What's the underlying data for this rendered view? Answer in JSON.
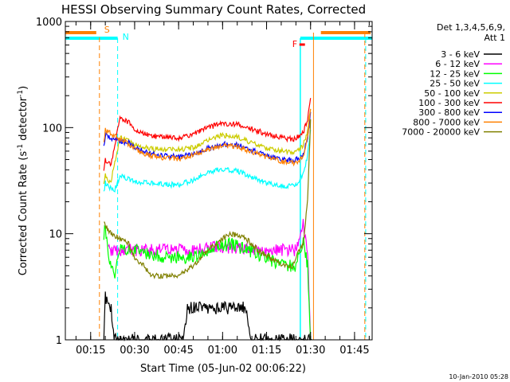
{
  "chart_data": {
    "type": "line",
    "title": "HESSI Observing Summary Count Rates, Corrected",
    "xlabel": "Start Time (05-Jun-02 00:06:22)",
    "ylabel_main": "Corrected Count Rate (s",
    "ylabel_sup1": "-1",
    "ylabel_mid": " detector",
    "ylabel_sup2": "-1",
    "ylabel_end": ")",
    "yscale": "log",
    "xlim_minutes": [
      6.37,
      111.0
    ],
    "ylim": [
      1,
      1000
    ],
    "x_ticks": [
      {
        "label": "00:15",
        "min": 15
      },
      {
        "label": "00:30",
        "min": 30
      },
      {
        "label": "00:45",
        "min": 45
      },
      {
        "label": "01:00",
        "min": 60
      },
      {
        "label": "01:15",
        "min": 75
      },
      {
        "label": "01:30",
        "min": 90
      },
      {
        "label": "01:45",
        "min": 105
      }
    ],
    "y_ticks": [
      {
        "label": "1",
        "v": 1
      },
      {
        "label": "10",
        "v": 10
      },
      {
        "label": "100",
        "v": 100
      },
      {
        "label": "1000",
        "v": 1000
      }
    ],
    "legend_header": [
      "Det 1,3,4,5,6,9,",
      "Att 1"
    ],
    "footer_date": "10-Jan-2010 05:28",
    "series": [
      {
        "name": "3 - 6 keV",
        "color": "#000000",
        "points": [
          [
            19.5,
            1
          ],
          [
            20,
            2.5
          ],
          [
            21,
            2
          ],
          [
            22,
            2
          ],
          [
            23,
            1
          ],
          [
            46.5,
            1
          ],
          [
            48,
            2
          ],
          [
            55,
            2
          ],
          [
            63,
            2
          ],
          [
            68,
            2
          ],
          [
            70,
            1
          ],
          [
            89,
            1
          ],
          [
            90.5,
            1
          ]
        ]
      },
      {
        "name": "6 - 12 keV",
        "color": "#ff00ff",
        "points": [
          [
            21,
            7
          ],
          [
            25,
            7
          ],
          [
            30,
            7
          ],
          [
            40,
            7
          ],
          [
            50,
            7
          ],
          [
            60,
            7.5
          ],
          [
            70,
            7
          ],
          [
            80,
            7
          ],
          [
            85,
            7
          ],
          [
            87.5,
            12
          ],
          [
            89,
            7
          ],
          [
            90,
            1
          ]
        ]
      },
      {
        "name": "12 - 25 keV",
        "color": "#00ff00",
        "points": [
          [
            19.5,
            9
          ],
          [
            20,
            12
          ],
          [
            21,
            6
          ],
          [
            23,
            4
          ],
          [
            25,
            7
          ],
          [
            30,
            7
          ],
          [
            40,
            6
          ],
          [
            50,
            6
          ],
          [
            58,
            7.5
          ],
          [
            63,
            8
          ],
          [
            68,
            7
          ],
          [
            75,
            6
          ],
          [
            80,
            5
          ],
          [
            85,
            5
          ],
          [
            87.5,
            9
          ],
          [
            89,
            5
          ],
          [
            90,
            1
          ]
        ]
      },
      {
        "name": "25 - 50 keV",
        "color": "#00ffff",
        "points": [
          [
            19.5,
            24
          ],
          [
            20,
            30
          ],
          [
            21,
            28
          ],
          [
            23,
            25
          ],
          [
            25,
            35
          ],
          [
            30,
            31
          ],
          [
            35,
            30
          ],
          [
            40,
            29
          ],
          [
            45,
            29
          ],
          [
            50,
            32
          ],
          [
            55,
            38
          ],
          [
            60,
            41
          ],
          [
            65,
            39
          ],
          [
            70,
            34
          ],
          [
            75,
            30
          ],
          [
            80,
            28
          ],
          [
            84,
            28
          ],
          [
            86,
            31
          ],
          [
            87.5,
            36
          ],
          [
            89,
            55
          ],
          [
            90,
            95
          ]
        ]
      },
      {
        "name": "50 - 100 keV",
        "color": "#cccc00",
        "points": [
          [
            19.5,
            28
          ],
          [
            20,
            35
          ],
          [
            21,
            30
          ],
          [
            22,
            32
          ],
          [
            25,
            80
          ],
          [
            30,
            70
          ],
          [
            35,
            63
          ],
          [
            40,
            62
          ],
          [
            45,
            62
          ],
          [
            50,
            65
          ],
          [
            55,
            76
          ],
          [
            60,
            85
          ],
          [
            65,
            82
          ],
          [
            70,
            72
          ],
          [
            75,
            64
          ],
          [
            80,
            60
          ],
          [
            84,
            58
          ],
          [
            86,
            62
          ],
          [
            87.5,
            68
          ],
          [
            89,
            95
          ],
          [
            90,
            150
          ]
        ]
      },
      {
        "name": "100 - 300 keV",
        "color": "#ff0000",
        "points": [
          [
            19.5,
            40
          ],
          [
            20,
            50
          ],
          [
            21,
            46
          ],
          [
            22,
            46
          ],
          [
            25,
            125
          ],
          [
            28,
            112
          ],
          [
            30,
            97
          ],
          [
            35,
            85
          ],
          [
            40,
            80
          ],
          [
            45,
            80
          ],
          [
            50,
            87
          ],
          [
            55,
            100
          ],
          [
            60,
            110
          ],
          [
            65,
            108
          ],
          [
            70,
            97
          ],
          [
            75,
            87
          ],
          [
            80,
            80
          ],
          [
            84,
            78
          ],
          [
            86,
            82
          ],
          [
            87.5,
            90
          ],
          [
            89,
            120
          ],
          [
            90,
            190
          ]
        ]
      },
      {
        "name": "300 - 800 keV",
        "color": "#0000ff",
        "points": [
          [
            19.5,
            65
          ],
          [
            20,
            85
          ],
          [
            21,
            80
          ],
          [
            22,
            80
          ],
          [
            25,
            75
          ],
          [
            28,
            72
          ],
          [
            30,
            65
          ],
          [
            35,
            57
          ],
          [
            40,
            54
          ],
          [
            45,
            53
          ],
          [
            50,
            56
          ],
          [
            55,
            64
          ],
          [
            60,
            70
          ],
          [
            65,
            69
          ],
          [
            70,
            61
          ],
          [
            75,
            55
          ],
          [
            80,
            50
          ],
          [
            84,
            49
          ],
          [
            86,
            51
          ],
          [
            87.5,
            57
          ],
          [
            89,
            80
          ],
          [
            90,
            140
          ]
        ]
      },
      {
        "name": "800 - 7000 keV",
        "color": "#ff8000",
        "points": [
          [
            19.5,
            70
          ],
          [
            20,
            95
          ],
          [
            21,
            92
          ],
          [
            22,
            88
          ],
          [
            24,
            80
          ],
          [
            28,
            70
          ],
          [
            30,
            62
          ],
          [
            35,
            55
          ],
          [
            40,
            52
          ],
          [
            45,
            51
          ],
          [
            50,
            55
          ],
          [
            55,
            63
          ],
          [
            60,
            68
          ],
          [
            65,
            67
          ],
          [
            70,
            59
          ],
          [
            75,
            53
          ],
          [
            80,
            48
          ],
          [
            84,
            46
          ],
          [
            86,
            48
          ],
          [
            87.5,
            55
          ],
          [
            89,
            80
          ],
          [
            90,
            150
          ]
        ]
      },
      {
        "name": "7000 - 20000 keV",
        "color": "#808000",
        "points": [
          [
            19.5,
            13
          ],
          [
            20,
            12
          ],
          [
            22,
            10
          ],
          [
            25,
            9
          ],
          [
            28,
            8
          ],
          [
            30,
            6
          ],
          [
            33,
            5
          ],
          [
            36,
            4
          ],
          [
            40,
            4
          ],
          [
            45,
            4
          ],
          [
            50,
            5
          ],
          [
            55,
            7
          ],
          [
            60,
            9
          ],
          [
            63,
            10
          ],
          [
            68,
            9
          ],
          [
            72,
            7
          ],
          [
            78,
            5.5
          ],
          [
            82,
            5
          ],
          [
            84,
            5
          ],
          [
            86,
            7
          ],
          [
            87.5,
            8
          ],
          [
            89,
            20
          ],
          [
            90,
            120
          ]
        ]
      }
    ],
    "markers": [
      {
        "label": "S",
        "color": "#ff8000",
        "min": 18.0
      },
      {
        "label": "N",
        "color": "#00ffff",
        "min": 24.2
      },
      {
        "label": "F",
        "color": "#ff0000",
        "min": 87.0
      }
    ]
  }
}
